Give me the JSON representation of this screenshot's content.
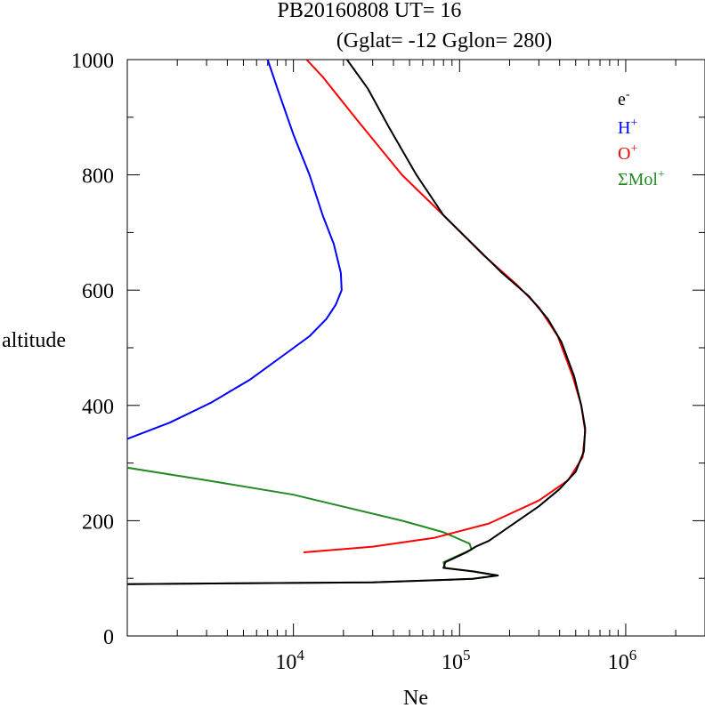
{
  "chart_data": {
    "type": "line",
    "title": "PB20160808   UT=  16",
    "subtitle": "(Gglat= -12   Gglon=  280)",
    "xlabel": "Ne",
    "ylabel": "altitude",
    "x_scale": "log",
    "xlim": [
      1000,
      3000000
    ],
    "ylim": [
      0,
      1000
    ],
    "y_ticks": [
      0,
      200,
      400,
      600,
      800,
      1000
    ],
    "x_ticks": [
      {
        "value": 10000,
        "base": "10",
        "exp": "4"
      },
      {
        "value": 100000,
        "base": "10",
        "exp": "5"
      },
      {
        "value": 1000000,
        "base": "10",
        "exp": "6"
      }
    ],
    "legend_position": "top-right",
    "series": [
      {
        "name": "e-",
        "label_base": "e",
        "label_sup": "-",
        "color": "#000000",
        "points": [
          [
            1000,
            90
          ],
          [
            30000,
            93
          ],
          [
            120000,
            99
          ],
          [
            170000,
            105
          ],
          [
            120000,
            112
          ],
          [
            80000,
            118
          ],
          [
            82000,
            128
          ],
          [
            110000,
            145
          ],
          [
            125000,
            155
          ],
          [
            150000,
            165
          ],
          [
            200000,
            190
          ],
          [
            300000,
            225
          ],
          [
            400000,
            255
          ],
          [
            500000,
            285
          ],
          [
            560000,
            320
          ],
          [
            570000,
            360
          ],
          [
            540000,
            400
          ],
          [
            490000,
            450
          ],
          [
            410000,
            510
          ],
          [
            340000,
            550
          ],
          [
            260000,
            590
          ],
          [
            180000,
            630
          ],
          [
            120000,
            680
          ],
          [
            80000,
            730
          ],
          [
            55000,
            800
          ],
          [
            38000,
            880
          ],
          [
            28000,
            950
          ],
          [
            21000,
            1000
          ]
        ]
      },
      {
        "name": "H+",
        "label_base": "H",
        "label_sup": "+",
        "color": "#0000ff",
        "points": [
          [
            1000,
            342
          ],
          [
            1800,
            370
          ],
          [
            3200,
            405
          ],
          [
            5500,
            445
          ],
          [
            9000,
            490
          ],
          [
            12500,
            520
          ],
          [
            15800,
            550
          ],
          [
            18000,
            575
          ],
          [
            19500,
            600
          ],
          [
            19300,
            630
          ],
          [
            17500,
            680
          ],
          [
            15000,
            730
          ],
          [
            12500,
            800
          ],
          [
            10000,
            870
          ],
          [
            8000,
            950
          ],
          [
            7000,
            1000
          ]
        ]
      },
      {
        "name": "O+",
        "label_base": "O",
        "label_sup": "+",
        "color": "#ff0000",
        "points": [
          [
            11500,
            145
          ],
          [
            30000,
            155
          ],
          [
            70000,
            170
          ],
          [
            150000,
            195
          ],
          [
            300000,
            235
          ],
          [
            450000,
            270
          ],
          [
            550000,
            310
          ],
          [
            570000,
            355
          ],
          [
            540000,
            400
          ],
          [
            480000,
            450
          ],
          [
            390000,
            520
          ],
          [
            300000,
            570
          ],
          [
            220000,
            610
          ],
          [
            140000,
            660
          ],
          [
            80000,
            730
          ],
          [
            45000,
            800
          ],
          [
            25000,
            890
          ],
          [
            15000,
            970
          ],
          [
            12000,
            1000
          ]
        ]
      },
      {
        "name": "ΣMol+",
        "label_base": "ΣMol",
        "label_sup": "+",
        "color": "#228b22",
        "points": [
          [
            1000,
            292
          ],
          [
            3000,
            270
          ],
          [
            10000,
            245
          ],
          [
            45000,
            200
          ],
          [
            80000,
            180
          ],
          [
            115000,
            160
          ],
          [
            118000,
            150
          ],
          [
            80000,
            128
          ],
          [
            82000,
            118
          ],
          [
            120000,
            112
          ],
          [
            170000,
            105
          ],
          [
            120000,
            99
          ],
          [
            30000,
            93
          ],
          [
            1000,
            90
          ]
        ]
      }
    ]
  }
}
